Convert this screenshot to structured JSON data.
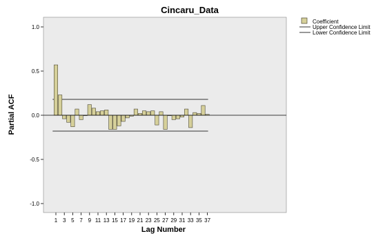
{
  "chart_data": {
    "type": "bar",
    "title": "Cincaru_Data",
    "xlabel": "Lag Number",
    "ylabel": "Partial ACF",
    "ylim": [
      -1.0,
      1.0
    ],
    "yticks": [
      "1.0",
      "0.5",
      "0.0",
      "-0.5",
      "-1.0"
    ],
    "ytick_values": [
      1.0,
      0.5,
      0.0,
      -0.5,
      -1.0
    ],
    "xtick_labels": [
      "1",
      "3",
      "5",
      "7",
      "9",
      "11",
      "13",
      "15",
      "17",
      "19",
      "21",
      "23",
      "25",
      "27",
      "29",
      "31",
      "33",
      "35",
      "37"
    ],
    "lags": [
      1,
      2,
      3,
      4,
      5,
      6,
      7,
      8,
      9,
      10,
      11,
      12,
      13,
      14,
      15,
      16,
      17,
      18,
      19,
      20,
      21,
      22,
      23,
      24,
      25,
      26,
      27,
      28,
      29,
      30,
      31,
      32,
      33,
      34,
      35,
      36,
      37
    ],
    "series": [
      {
        "name": "Coefficient",
        "values": [
          0.57,
          0.23,
          -0.04,
          -0.08,
          -0.13,
          0.07,
          -0.05,
          0.0,
          0.12,
          0.08,
          0.04,
          0.05,
          0.06,
          -0.16,
          -0.16,
          -0.12,
          -0.07,
          -0.03,
          -0.01,
          0.07,
          0.02,
          0.05,
          0.04,
          0.05,
          -0.11,
          0.04,
          -0.16,
          0.0,
          -0.05,
          -0.04,
          -0.02,
          0.07,
          -0.14,
          0.03,
          0.02,
          0.11,
          0.01
        ]
      },
      {
        "name": "Upper Confidence Limit",
        "value": 0.18
      },
      {
        "name": "Lower Confidence Limit",
        "value": -0.18
      }
    ],
    "legend_position": "top-right",
    "grid": false,
    "colors": {
      "bar_fill": "#d6d09a",
      "bar_stroke": "#4a4633",
      "plot_bg": "#ebebeb",
      "limit_line": "#333333"
    }
  }
}
